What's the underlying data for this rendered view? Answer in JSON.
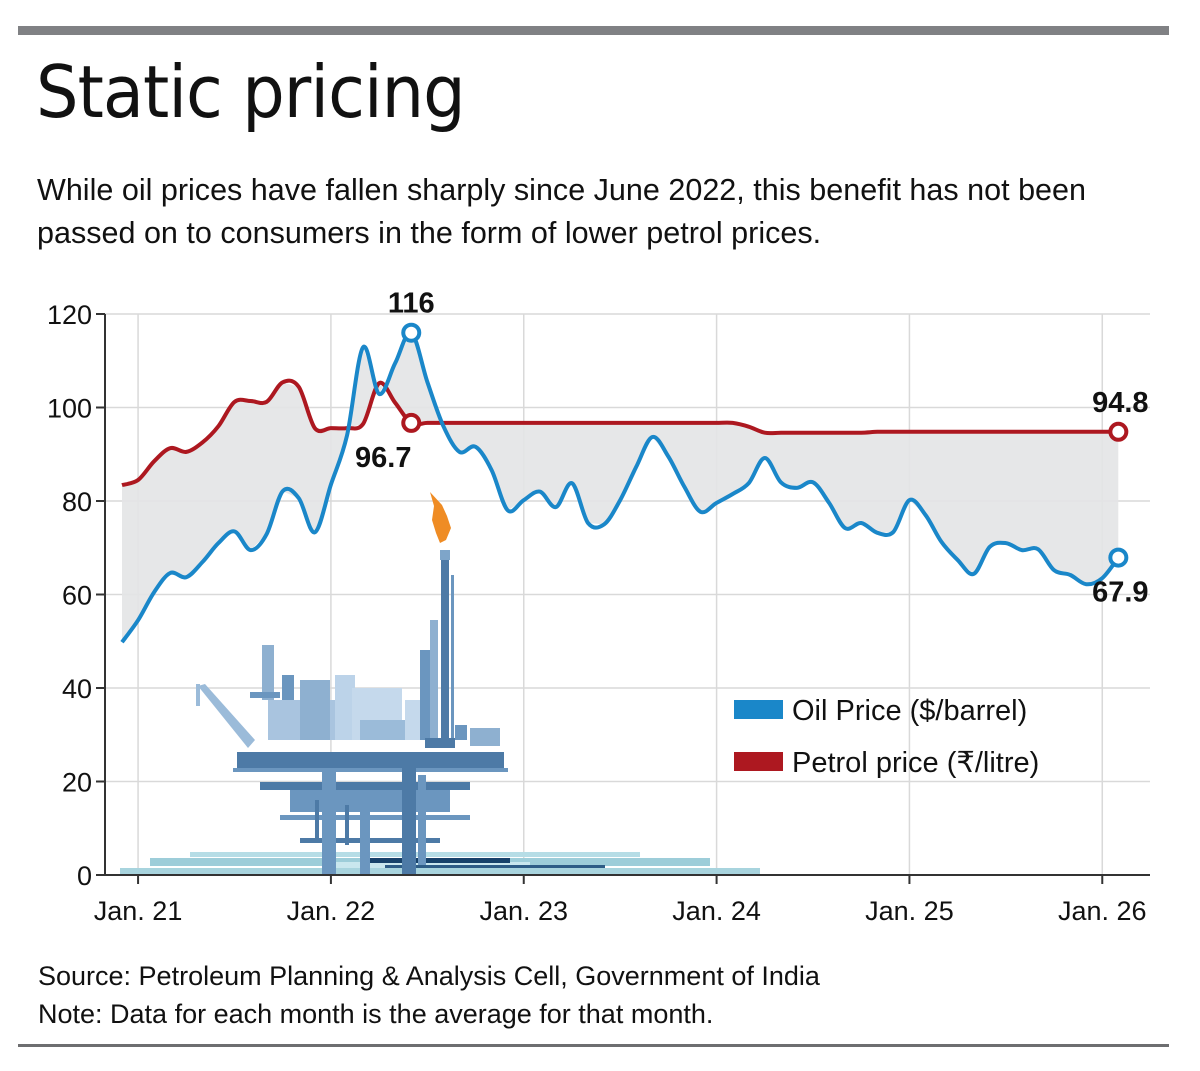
{
  "header": {
    "title": "Static pricing",
    "subtitle": "While oil prices have fallen sharply since June 2022, this benefit has not been passed on to consumers in the form of lower petrol prices."
  },
  "footer": {
    "source": "Source: Petroleum Planning & Analysis Cell, Government of India",
    "note": "Note: Data for each month is the average for that month."
  },
  "colors": {
    "oil": "#1a87c9",
    "petrol": "#ad1820",
    "gap_fill": "#e3e4e6",
    "grid": "#d9d9d9",
    "axis": "#333333",
    "flame": "#ef8c24"
  },
  "chart_data": {
    "type": "line",
    "title": "Static pricing",
    "xlabel": "",
    "ylabel": "",
    "ylim": [
      0,
      120
    ],
    "yticks": [
      0,
      20,
      40,
      60,
      80,
      100,
      120
    ],
    "x_tick_labels": [
      "Jan. 21",
      "Jan. 22",
      "Jan. 23",
      "Jan. 24",
      "Jan. 25",
      "Jan. 26"
    ],
    "x_start": "Dec. 2020",
    "x_end": "Feb. 2026",
    "x_unit": "month",
    "grid": true,
    "shaded_between_series": true,
    "legend": {
      "placement": "bottom-right",
      "entries": [
        {
          "name": "Oil Price ($/barrel)",
          "series": "oil"
        },
        {
          "name": "Petrol price (₹/litre)",
          "series": "petrol"
        }
      ]
    },
    "x": [
      "2020-12",
      "2021-01",
      "2021-02",
      "2021-03",
      "2021-04",
      "2021-05",
      "2021-06",
      "2021-07",
      "2021-08",
      "2021-09",
      "2021-10",
      "2021-11",
      "2021-12",
      "2022-01",
      "2022-02",
      "2022-03",
      "2022-04",
      "2022-05",
      "2022-06",
      "2022-07",
      "2022-08",
      "2022-09",
      "2022-10",
      "2022-11",
      "2022-12",
      "2023-01",
      "2023-02",
      "2023-03",
      "2023-04",
      "2023-05",
      "2023-06",
      "2023-07",
      "2023-08",
      "2023-09",
      "2023-10",
      "2023-11",
      "2023-12",
      "2024-01",
      "2024-02",
      "2024-03",
      "2024-04",
      "2024-05",
      "2024-06",
      "2024-07",
      "2024-08",
      "2024-09",
      "2024-10",
      "2024-11",
      "2024-12",
      "2025-01",
      "2025-02",
      "2025-03",
      "2025-04",
      "2025-05",
      "2025-06",
      "2025-07",
      "2025-08",
      "2025-09",
      "2025-10",
      "2025-11",
      "2025-12",
      "2026-01",
      "2026-02"
    ],
    "series": [
      {
        "name": "Oil Price ($/barrel)",
        "key": "oil",
        "values": [
          49.8,
          54.5,
          60.5,
          64.6,
          63.7,
          66.9,
          71.0,
          73.5,
          69.5,
          72.9,
          82.1,
          80.6,
          73.3,
          83.5,
          94.0,
          112.9,
          102.9,
          109.5,
          116.0,
          105.5,
          96.0,
          90.5,
          91.6,
          86.6,
          78.0,
          80.2,
          82.0,
          78.7,
          83.8,
          75.3,
          75.0,
          80.2,
          87.3,
          93.7,
          89.5,
          83.0,
          77.7,
          79.6,
          81.5,
          83.8,
          89.2,
          84.0,
          82.8,
          84.0,
          79.6,
          74.2,
          75.3,
          73.2,
          73.4,
          80.2,
          77.0,
          71.2,
          67.4,
          64.4,
          70.2,
          71.0,
          69.5,
          69.7,
          65.2,
          64.2,
          62.2,
          63.5,
          67.9
        ]
      },
      {
        "name": "Petrol price (₹/litre)",
        "key": "petrol",
        "values": [
          83.4,
          84.5,
          88.5,
          91.3,
          90.5,
          92.5,
          96.0,
          101.2,
          101.4,
          101.2,
          105.4,
          104.4,
          95.6,
          95.6,
          95.6,
          96.5,
          105.2,
          101.0,
          96.7,
          96.7,
          96.7,
          96.7,
          96.7,
          96.7,
          96.7,
          96.7,
          96.7,
          96.7,
          96.7,
          96.7,
          96.7,
          96.7,
          96.7,
          96.7,
          96.7,
          96.7,
          96.7,
          96.7,
          96.7,
          95.9,
          94.6,
          94.6,
          94.6,
          94.6,
          94.6,
          94.6,
          94.6,
          94.8,
          94.8,
          94.8,
          94.8,
          94.8,
          94.8,
          94.8,
          94.8,
          94.8,
          94.8,
          94.8,
          94.8,
          94.8,
          94.8,
          94.8,
          94.8
        ]
      }
    ],
    "annotations": [
      {
        "series": "oil",
        "x": "2022-06",
        "value": 116,
        "label": "116",
        "position": "above"
      },
      {
        "series": "petrol",
        "x": "2022-06",
        "value": 96.7,
        "label": "96.7",
        "position": "below"
      },
      {
        "series": "petrol",
        "x": "2026-02",
        "value": 94.8,
        "label": "94.8",
        "position": "above"
      },
      {
        "series": "oil",
        "x": "2026-02",
        "value": 67.9,
        "label": "67.9",
        "position": "below"
      }
    ],
    "illustration": "offshore-oil-rig-with-flare"
  }
}
